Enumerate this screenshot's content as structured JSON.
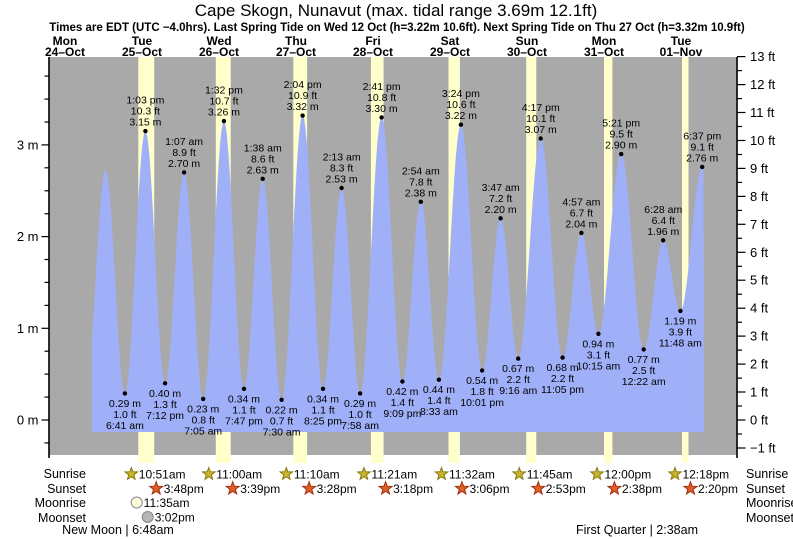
{
  "title": "Cape Skogn, Nunavut (max. tidal range 3.69m 12.1ft)",
  "subtitle": "Times are EDT (UTC −4.0hrs). Last Spring Tide on Wed 12 Oct (h=3.22m 10.6ft). Next Spring Tide on Thu 27 Oct (h=3.32m 10.9ft)",
  "row_labels": {
    "sunrise": "Sunrise",
    "sunset": "Sunset",
    "moonrise": "Moonrise",
    "moonset": "Moonset"
  },
  "moon_notes": {
    "left": "New Moon | 6:48am",
    "right": "First Quarter | 2:38am"
  },
  "colors": {
    "plot_bg": "#a9a9a9",
    "daylight_stripe": "#ffffcc",
    "water": "#a0b0f8",
    "date_red": "#e2402c",
    "sunrise_star": "#c9b42e",
    "sunrise_star_border": "#8a7a10",
    "sunset_star": "#dd5e28",
    "sunset_star_border": "#a33011",
    "moonrise_fill": "#ffffe0",
    "moonset_fill": "#b5b5b5",
    "moon_border": "#888888",
    "axis": "#000000"
  },
  "chart_data": {
    "type": "area",
    "title": "Cape Skogn, Nunavut (max. tidal range 3.69m 12.1ft)",
    "y_axis_left": {
      "unit": "m",
      "ticks": [
        {
          "v": 3,
          "label": "3 m"
        },
        {
          "v": 2,
          "label": "2 m"
        },
        {
          "v": 1,
          "label": "1 m"
        },
        {
          "v": 0,
          "label": "0 m"
        }
      ],
      "minor_step_m": 0.25
    },
    "y_axis_right": {
      "unit": "ft",
      "ticks": [
        {
          "v": 13,
          "label": "13 ft"
        },
        {
          "v": 12,
          "label": "12 ft"
        },
        {
          "v": 11,
          "label": "11 ft"
        },
        {
          "v": 10,
          "label": "10 ft"
        },
        {
          "v": 9,
          "label": "9 ft"
        },
        {
          "v": 8,
          "label": "8 ft"
        },
        {
          "v": 7,
          "label": "7 ft"
        },
        {
          "v": 6,
          "label": "6 ft"
        },
        {
          "v": 5,
          "label": "5 ft"
        },
        {
          "v": 4,
          "label": "4 ft"
        },
        {
          "v": 3,
          "label": "3 ft"
        },
        {
          "v": 2,
          "label": "2 ft"
        },
        {
          "v": 1,
          "label": "1 ft"
        },
        {
          "v": 0,
          "label": "0 ft"
        },
        {
          "v": -1,
          "label": "−1 ft"
        }
      ],
      "minor_step_ft": 0.5
    },
    "days": [
      {
        "dow": "Mon",
        "date": "24–Oct"
      },
      {
        "dow": "Tue",
        "date": "25–Oct",
        "sunrise": "10:51am",
        "sunset": "3:48pm",
        "moonrise": "11:35am",
        "moonset": "3:02pm"
      },
      {
        "dow": "Wed",
        "date": "26–Oct",
        "sunrise": "11:00am",
        "sunset": "3:39pm"
      },
      {
        "dow": "Thu",
        "date": "27–Oct",
        "sunrise": "11:10am",
        "sunset": "3:28pm"
      },
      {
        "dow": "Fri",
        "date": "28–Oct",
        "sunrise": "11:21am",
        "sunset": "3:18pm"
      },
      {
        "dow": "Sat",
        "date": "29–Oct",
        "sunrise": "11:32am",
        "sunset": "3:06pm"
      },
      {
        "dow": "Sun",
        "date": "30–Oct",
        "sunrise": "11:45am",
        "sunset": "2:53pm"
      },
      {
        "dow": "Mon",
        "date": "31–Oct",
        "sunrise": "12:00pm",
        "sunset": "2:38pm"
      },
      {
        "dow": "Tue",
        "date": "01–Nov",
        "sunrise": "12:18pm",
        "sunset": "2:20pm"
      }
    ],
    "tide_events": [
      {
        "day": 1,
        "time": "12:39 am",
        "h": 2.72,
        "type": "high",
        "labeled": false
      },
      {
        "day": 1,
        "time": "6:41 am",
        "h": 0.29,
        "m_label": "0.29 m",
        "ft_label": "1.0 ft",
        "type": "low",
        "labeled": true
      },
      {
        "day": 1,
        "time": "1:03 pm",
        "h": 3.15,
        "m_label": "3.15 m",
        "ft_label": "10.3 ft",
        "type": "high",
        "labeled": true
      },
      {
        "day": 1,
        "time": "7:12 pm",
        "h": 0.4,
        "m_label": "0.40 m",
        "ft_label": "1.3 ft",
        "type": "low",
        "labeled": true
      },
      {
        "day": 2,
        "time": "1:07 am",
        "h": 2.7,
        "m_label": "2.70 m",
        "ft_label": "8.9 ft",
        "type": "high",
        "labeled": true
      },
      {
        "day": 2,
        "time": "7:05 am",
        "h": 0.23,
        "m_label": "0.23 m",
        "ft_label": "0.8 ft",
        "type": "low",
        "labeled": true
      },
      {
        "day": 2,
        "time": "1:32 pm",
        "h": 3.26,
        "m_label": "3.26 m",
        "ft_label": "10.7 ft",
        "type": "high",
        "labeled": true
      },
      {
        "day": 2,
        "time": "7:47 pm",
        "h": 0.34,
        "m_label": "0.34 m",
        "ft_label": "1.1 ft",
        "type": "low",
        "labeled": true
      },
      {
        "day": 3,
        "time": "1:38 am",
        "h": 2.63,
        "m_label": "2.63 m",
        "ft_label": "8.6 ft",
        "type": "high",
        "labeled": true
      },
      {
        "day": 3,
        "time": "7:30 am",
        "h": 0.22,
        "m_label": "0.22 m",
        "ft_label": "0.7 ft",
        "type": "low",
        "labeled": true
      },
      {
        "day": 3,
        "time": "2:04 pm",
        "h": 3.32,
        "m_label": "3.32 m",
        "ft_label": "10.9 ft",
        "type": "high",
        "labeled": true
      },
      {
        "day": 3,
        "time": "8:25 pm",
        "h": 0.34,
        "m_label": "0.34 m",
        "ft_label": "1.1 ft",
        "type": "low",
        "labeled": true
      },
      {
        "day": 4,
        "time": "2:13 am",
        "h": 2.53,
        "m_label": "2.53 m",
        "ft_label": "8.3 ft",
        "type": "high",
        "labeled": true
      },
      {
        "day": 4,
        "time": "7:58 am",
        "h": 0.29,
        "m_label": "0.29 m",
        "ft_label": "1.0 ft",
        "type": "low",
        "labeled": true
      },
      {
        "day": 4,
        "time": "2:41 pm",
        "h": 3.3,
        "m_label": "3.30 m",
        "ft_label": "10.8 ft",
        "type": "high",
        "labeled": true
      },
      {
        "day": 4,
        "time": "9:09 pm",
        "h": 0.42,
        "m_label": "0.42 m",
        "ft_label": "1.4 ft",
        "type": "low",
        "labeled": true
      },
      {
        "day": 5,
        "time": "2:54 am",
        "h": 2.38,
        "m_label": "2.38 m",
        "ft_label": "7.8 ft",
        "type": "high",
        "labeled": true
      },
      {
        "day": 5,
        "time": "8:33 am",
        "h": 0.44,
        "m_label": "0.44 m",
        "ft_label": "1.4 ft",
        "type": "low",
        "labeled": true
      },
      {
        "day": 5,
        "time": "3:24 pm",
        "h": 3.22,
        "m_label": "3.22 m",
        "ft_label": "10.6 ft",
        "type": "high",
        "labeled": true
      },
      {
        "day": 5,
        "time": "10:01 pm",
        "h": 0.54,
        "m_label": "0.54 m",
        "ft_label": "1.8 ft",
        "type": "low",
        "labeled": true
      },
      {
        "day": 6,
        "time": "3:47 am",
        "h": 2.2,
        "m_label": "2.20 m",
        "ft_label": "7.2 ft",
        "type": "high",
        "labeled": true
      },
      {
        "day": 6,
        "time": "9:16 am",
        "h": 0.67,
        "m_label": "0.67 m",
        "ft_label": "2.2 ft",
        "type": "low",
        "labeled": true
      },
      {
        "day": 6,
        "time": "4:17 pm",
        "h": 3.07,
        "m_label": "3.07 m",
        "ft_label": "10.1 ft",
        "type": "high",
        "labeled": true
      },
      {
        "day": 6,
        "time": "11:05 pm",
        "h": 0.68,
        "m_label": "0.68 m",
        "ft_label": "2.2 ft",
        "type": "low",
        "labeled": true
      },
      {
        "day": 7,
        "time": "4:57 am",
        "h": 2.04,
        "m_label": "2.04 m",
        "ft_label": "6.7 ft",
        "type": "high",
        "labeled": true
      },
      {
        "day": 7,
        "time": "10:15 am",
        "h": 0.94,
        "m_label": "0.94 m",
        "ft_label": "3.1 ft",
        "type": "low",
        "labeled": true
      },
      {
        "day": 7,
        "time": "5:21 pm",
        "h": 2.9,
        "m_label": "2.90 m",
        "ft_label": "9.5 ft",
        "type": "high",
        "labeled": true
      },
      {
        "day": 8,
        "time": "12:22 am",
        "h": 0.77,
        "m_label": "0.77 m",
        "ft_label": "2.5 ft",
        "type": "low",
        "labeled": true
      },
      {
        "day": 8,
        "time": "6:28 am",
        "h": 1.96,
        "m_label": "1.96 m",
        "ft_label": "6.4 ft",
        "type": "high",
        "labeled": true
      },
      {
        "day": 8,
        "time": "11:48 am",
        "h": 1.19,
        "m_label": "1.19 m",
        "ft_label": "3.9 ft",
        "type": "low",
        "labeled": true
      },
      {
        "day": 8,
        "time": "6:37 pm",
        "h": 2.76,
        "m_label": "2.76 m",
        "ft_label": "9.1 ft",
        "type": "high",
        "labeled": true
      }
    ]
  }
}
